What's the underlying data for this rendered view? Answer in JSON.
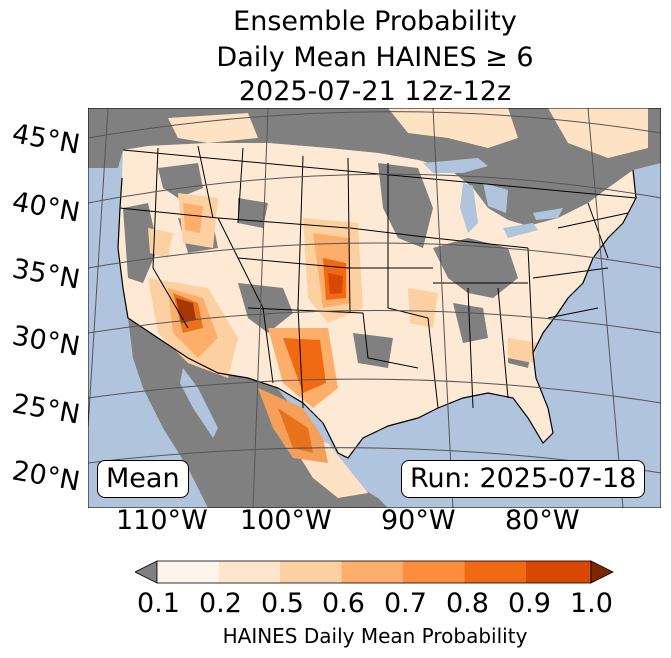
{
  "title": {
    "line1": "Ensemble Probability",
    "line2": "Daily Mean HAINES ≥ 6",
    "line3": "2025-07-21 12z-12z"
  },
  "map": {
    "lat_labels": [
      "45°N",
      "40°N",
      "35°N",
      "30°N",
      "25°N",
      "20°N"
    ],
    "lon_labels": [
      "110°W",
      "100°W",
      "90°W",
      "80°W"
    ],
    "stat_label": "Mean",
    "run_label": "Run: 2025-07-18",
    "colors": {
      "ocean": "#b0c4de",
      "land_masked": "#808080",
      "land_low": "#fef0e0",
      "graticule": "#555555"
    }
  },
  "colorbar": {
    "ticks": [
      "0.1",
      "0.2",
      "0.5",
      "0.6",
      "0.7",
      "0.8",
      "0.9",
      "1.0"
    ],
    "label": "HAINES Daily Mean Probability",
    "colors": [
      "#fff5eb",
      "#fee6ce",
      "#fdd0a2",
      "#fdae6b",
      "#fd8d3c",
      "#f16913",
      "#d94801",
      "#a63603"
    ],
    "under_color": "#808080",
    "over_color": "#7f2704"
  }
}
